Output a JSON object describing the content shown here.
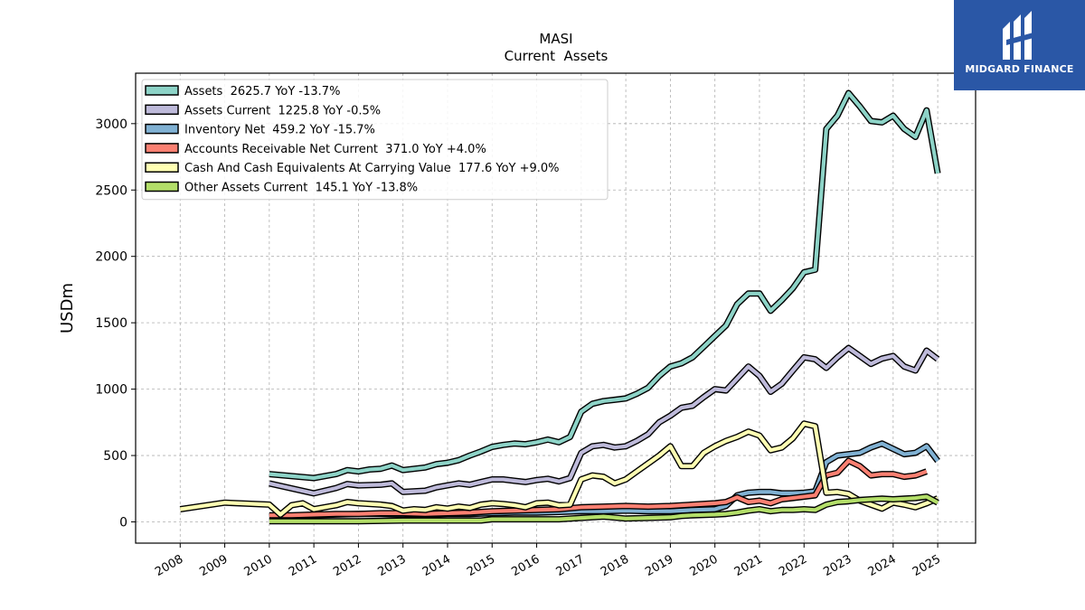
{
  "chart_data": {
    "type": "line",
    "title": "MASI",
    "subtitle": "Current  Assets",
    "ylabel": "USDm",
    "xlabel": "",
    "ylim": [
      -160,
      3380
    ],
    "xlim": [
      2007.0,
      2025.85
    ],
    "x_ticks": [
      2008,
      2009,
      2010,
      2011,
      2012,
      2013,
      2014,
      2015,
      2016,
      2017,
      2018,
      2019,
      2020,
      2021,
      2022,
      2023,
      2024,
      2025
    ],
    "y_ticks": [
      0,
      500,
      1000,
      1500,
      2000,
      2500,
      3000
    ],
    "grid": true,
    "legend_position": "top-left",
    "series": [
      {
        "name": "Assets  2625.7 YoY -13.7%",
        "color": "#8dd3c7",
        "points": [
          [
            2010.0,
            360
          ],
          [
            2011.0,
            330
          ],
          [
            2011.5,
            360
          ],
          [
            2011.75,
            390
          ],
          [
            2012.0,
            380
          ],
          [
            2012.25,
            395
          ],
          [
            2012.5,
            400
          ],
          [
            2012.75,
            425
          ],
          [
            2013.0,
            390
          ],
          [
            2013.5,
            410
          ],
          [
            2013.75,
            435
          ],
          [
            2014.0,
            445
          ],
          [
            2014.25,
            465
          ],
          [
            2014.5,
            500
          ],
          [
            2014.75,
            530
          ],
          [
            2015.0,
            565
          ],
          [
            2015.25,
            580
          ],
          [
            2015.5,
            590
          ],
          [
            2015.75,
            585
          ],
          [
            2016.0,
            600
          ],
          [
            2016.25,
            620
          ],
          [
            2016.5,
            600
          ],
          [
            2016.75,
            640
          ],
          [
            2017.0,
            830
          ],
          [
            2017.25,
            890
          ],
          [
            2017.5,
            910
          ],
          [
            2017.75,
            920
          ],
          [
            2018.0,
            930
          ],
          [
            2018.25,
            965
          ],
          [
            2018.5,
            1010
          ],
          [
            2018.75,
            1100
          ],
          [
            2019.0,
            1170
          ],
          [
            2019.25,
            1195
          ],
          [
            2019.5,
            1240
          ],
          [
            2019.75,
            1320
          ],
          [
            2020.0,
            1400
          ],
          [
            2020.25,
            1480
          ],
          [
            2020.5,
            1640
          ],
          [
            2020.75,
            1720
          ],
          [
            2021.0,
            1720
          ],
          [
            2021.25,
            1590
          ],
          [
            2021.5,
            1670
          ],
          [
            2021.75,
            1760
          ],
          [
            2022.0,
            1880
          ],
          [
            2022.25,
            1900
          ],
          [
            2022.5,
            2960
          ],
          [
            2022.75,
            3060
          ],
          [
            2023.0,
            3230
          ],
          [
            2023.25,
            3130
          ],
          [
            2023.5,
            3020
          ],
          [
            2023.75,
            3010
          ],
          [
            2024.0,
            3060
          ],
          [
            2024.25,
            2960
          ],
          [
            2024.5,
            2900
          ],
          [
            2024.75,
            3100
          ],
          [
            2025.0,
            2625.7
          ]
        ]
      },
      {
        "name": "Assets Current  1225.8 YoY -0.5%",
        "color": "#bebada",
        "points": [
          [
            2010.0,
            290
          ],
          [
            2011.0,
            215
          ],
          [
            2011.5,
            255
          ],
          [
            2011.75,
            285
          ],
          [
            2012.0,
            275
          ],
          [
            2012.5,
            280
          ],
          [
            2012.75,
            290
          ],
          [
            2013.0,
            225
          ],
          [
            2013.5,
            235
          ],
          [
            2013.75,
            260
          ],
          [
            2014.0,
            275
          ],
          [
            2014.25,
            290
          ],
          [
            2014.5,
            280
          ],
          [
            2014.75,
            300
          ],
          [
            2015.0,
            320
          ],
          [
            2015.25,
            320
          ],
          [
            2015.5,
            310
          ],
          [
            2015.75,
            300
          ],
          [
            2016.0,
            315
          ],
          [
            2016.25,
            325
          ],
          [
            2016.5,
            305
          ],
          [
            2016.75,
            330
          ],
          [
            2017.0,
            520
          ],
          [
            2017.25,
            570
          ],
          [
            2017.5,
            580
          ],
          [
            2017.75,
            560
          ],
          [
            2018.0,
            570
          ],
          [
            2018.25,
            610
          ],
          [
            2018.5,
            660
          ],
          [
            2018.75,
            750
          ],
          [
            2019.0,
            800
          ],
          [
            2019.25,
            860
          ],
          [
            2019.5,
            875
          ],
          [
            2019.75,
            940
          ],
          [
            2020.0,
            1000
          ],
          [
            2020.25,
            990
          ],
          [
            2020.5,
            1080
          ],
          [
            2020.75,
            1170
          ],
          [
            2021.0,
            1100
          ],
          [
            2021.25,
            980
          ],
          [
            2021.5,
            1040
          ],
          [
            2021.75,
            1140
          ],
          [
            2022.0,
            1240
          ],
          [
            2022.25,
            1225
          ],
          [
            2022.5,
            1160
          ],
          [
            2022.75,
            1240
          ],
          [
            2023.0,
            1310
          ],
          [
            2023.25,
            1250
          ],
          [
            2023.5,
            1190
          ],
          [
            2023.75,
            1230
          ],
          [
            2024.0,
            1250
          ],
          [
            2024.25,
            1170
          ],
          [
            2024.5,
            1140
          ],
          [
            2024.75,
            1290
          ],
          [
            2025.0,
            1225.8
          ]
        ]
      },
      {
        "name": "Inventory Net  459.2 YoY -15.7%",
        "color": "#80b1d3",
        "points": [
          [
            2010.0,
            40
          ],
          [
            2010.5,
            45
          ],
          [
            2011.0,
            50
          ],
          [
            2011.5,
            55
          ],
          [
            2012.0,
            60
          ],
          [
            2012.5,
            60
          ],
          [
            2013.0,
            55
          ],
          [
            2013.5,
            55
          ],
          [
            2014.0,
            60
          ],
          [
            2014.5,
            60
          ],
          [
            2015.0,
            65
          ],
          [
            2015.5,
            70
          ],
          [
            2016.0,
            70
          ],
          [
            2016.5,
            75
          ],
          [
            2017.0,
            80
          ],
          [
            2017.5,
            80
          ],
          [
            2018.0,
            85
          ],
          [
            2018.5,
            80
          ],
          [
            2019.0,
            80
          ],
          [
            2019.5,
            90
          ],
          [
            2020.0,
            95
          ],
          [
            2020.25,
            120
          ],
          [
            2020.5,
            200
          ],
          [
            2020.75,
            220
          ],
          [
            2021.0,
            225
          ],
          [
            2021.25,
            225
          ],
          [
            2021.5,
            215
          ],
          [
            2021.75,
            215
          ],
          [
            2022.0,
            220
          ],
          [
            2022.25,
            230
          ],
          [
            2022.5,
            450
          ],
          [
            2022.75,
            500
          ],
          [
            2023.0,
            510
          ],
          [
            2023.25,
            520
          ],
          [
            2023.5,
            560
          ],
          [
            2023.75,
            590
          ],
          [
            2024.0,
            550
          ],
          [
            2024.25,
            510
          ],
          [
            2024.5,
            520
          ],
          [
            2024.75,
            570
          ],
          [
            2025.0,
            459.2
          ]
        ]
      },
      {
        "name": "Accounts Receivable Net Current  371.0 YoY +4.0%",
        "color": "#fb8072",
        "points": [
          [
            2010.0,
            50
          ],
          [
            2010.5,
            50
          ],
          [
            2011.0,
            55
          ],
          [
            2011.5,
            60
          ],
          [
            2012.0,
            60
          ],
          [
            2012.5,
            65
          ],
          [
            2013.0,
            65
          ],
          [
            2013.5,
            60
          ],
          [
            2014.0,
            65
          ],
          [
            2014.5,
            70
          ],
          [
            2015.0,
            80
          ],
          [
            2015.5,
            85
          ],
          [
            2016.0,
            90
          ],
          [
            2016.5,
            95
          ],
          [
            2017.0,
            110
          ],
          [
            2017.5,
            115
          ],
          [
            2018.0,
            120
          ],
          [
            2018.5,
            115
          ],
          [
            2019.0,
            120
          ],
          [
            2019.5,
            130
          ],
          [
            2020.0,
            140
          ],
          [
            2020.25,
            150
          ],
          [
            2020.5,
            185
          ],
          [
            2020.75,
            150
          ],
          [
            2021.0,
            160
          ],
          [
            2021.25,
            140
          ],
          [
            2021.5,
            170
          ],
          [
            2021.75,
            180
          ],
          [
            2022.0,
            190
          ],
          [
            2022.25,
            200
          ],
          [
            2022.5,
            350
          ],
          [
            2022.75,
            370
          ],
          [
            2023.0,
            460
          ],
          [
            2023.25,
            420
          ],
          [
            2023.5,
            350
          ],
          [
            2023.75,
            360
          ],
          [
            2024.0,
            360
          ],
          [
            2024.25,
            340
          ],
          [
            2024.5,
            350
          ],
          [
            2024.75,
            380
          ]
        ]
      },
      {
        "name": "Cash And Cash Equivalents At Carrying Value  177.6 YoY +9.0%",
        "color": "#ffffb3",
        "points": [
          [
            2008.0,
            95
          ],
          [
            2009.0,
            145
          ],
          [
            2010.0,
            130
          ],
          [
            2010.25,
            55
          ],
          [
            2010.5,
            125
          ],
          [
            2010.75,
            140
          ],
          [
            2011.0,
            95
          ],
          [
            2011.5,
            125
          ],
          [
            2011.75,
            150
          ],
          [
            2012.0,
            140
          ],
          [
            2012.5,
            130
          ],
          [
            2012.75,
            120
          ],
          [
            2013.0,
            85
          ],
          [
            2013.25,
            95
          ],
          [
            2013.5,
            90
          ],
          [
            2013.75,
            110
          ],
          [
            2014.0,
            100
          ],
          [
            2014.25,
            115
          ],
          [
            2014.5,
            105
          ],
          [
            2014.75,
            130
          ],
          [
            2015.0,
            140
          ],
          [
            2015.25,
            135
          ],
          [
            2015.5,
            125
          ],
          [
            2015.75,
            110
          ],
          [
            2016.0,
            140
          ],
          [
            2016.25,
            145
          ],
          [
            2016.5,
            125
          ],
          [
            2016.75,
            130
          ],
          [
            2017.0,
            320
          ],
          [
            2017.25,
            350
          ],
          [
            2017.5,
            340
          ],
          [
            2017.75,
            290
          ],
          [
            2018.0,
            320
          ],
          [
            2018.25,
            380
          ],
          [
            2018.5,
            440
          ],
          [
            2018.75,
            500
          ],
          [
            2019.0,
            570
          ],
          [
            2019.25,
            420
          ],
          [
            2019.5,
            420
          ],
          [
            2019.75,
            520
          ],
          [
            2020.0,
            570
          ],
          [
            2020.25,
            610
          ],
          [
            2020.5,
            640
          ],
          [
            2020.75,
            680
          ],
          [
            2021.0,
            650
          ],
          [
            2021.25,
            540
          ],
          [
            2021.5,
            560
          ],
          [
            2021.75,
            630
          ],
          [
            2022.0,
            740
          ],
          [
            2022.25,
            720
          ],
          [
            2022.5,
            220
          ],
          [
            2022.75,
            225
          ],
          [
            2023.0,
            210
          ],
          [
            2023.25,
            160
          ],
          [
            2023.5,
            130
          ],
          [
            2023.75,
            100
          ],
          [
            2024.0,
            145
          ],
          [
            2024.25,
            130
          ],
          [
            2024.5,
            110
          ],
          [
            2024.75,
            140
          ],
          [
            2025.0,
            177.6
          ]
        ]
      },
      {
        "name": "Other Assets Current  145.1 YoY -13.8%",
        "color": "#b3de69",
        "points": [
          [
            2010.0,
            5
          ],
          [
            2011.0,
            5
          ],
          [
            2012.0,
            5
          ],
          [
            2013.0,
            10
          ],
          [
            2014.0,
            10
          ],
          [
            2014.75,
            10
          ],
          [
            2015.0,
            20
          ],
          [
            2015.5,
            20
          ],
          [
            2016.0,
            20
          ],
          [
            2016.5,
            20
          ],
          [
            2017.0,
            30
          ],
          [
            2017.5,
            40
          ],
          [
            2018.0,
            25
          ],
          [
            2018.5,
            30
          ],
          [
            2019.0,
            35
          ],
          [
            2019.25,
            45
          ],
          [
            2019.5,
            50
          ],
          [
            2020.0,
            55
          ],
          [
            2020.25,
            60
          ],
          [
            2020.5,
            70
          ],
          [
            2020.75,
            85
          ],
          [
            2021.0,
            95
          ],
          [
            2021.25,
            80
          ],
          [
            2021.5,
            90
          ],
          [
            2021.75,
            90
          ],
          [
            2022.0,
            95
          ],
          [
            2022.25,
            90
          ],
          [
            2022.5,
            130
          ],
          [
            2022.75,
            150
          ],
          [
            2023.0,
            155
          ],
          [
            2023.25,
            165
          ],
          [
            2023.5,
            170
          ],
          [
            2023.75,
            175
          ],
          [
            2024.0,
            170
          ],
          [
            2024.25,
            175
          ],
          [
            2024.5,
            180
          ],
          [
            2024.75,
            190
          ],
          [
            2025.0,
            145.1
          ]
        ]
      }
    ]
  },
  "logo": {
    "text": "MIDGARD FINANCE"
  }
}
